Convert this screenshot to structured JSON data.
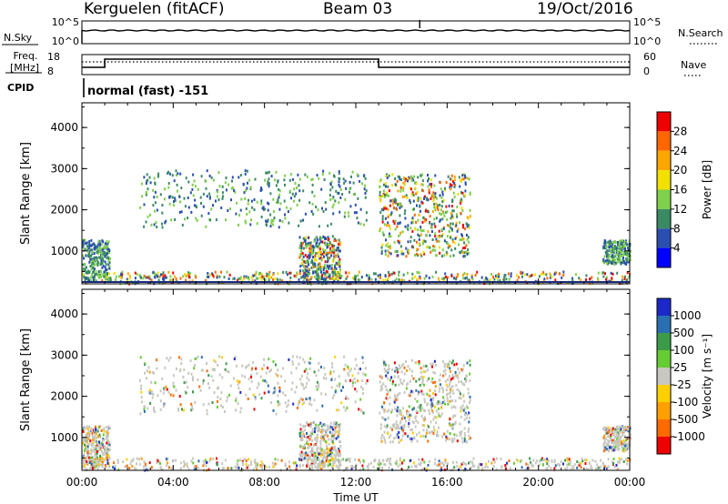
{
  "header": {
    "station": "Kerguelen (fitACF)",
    "beam": "Beam 03",
    "date": "19/Oct/2016"
  },
  "params": {
    "nsky_label": "N.Sky",
    "nsky_ticks": [
      "10^5",
      "10^0"
    ],
    "nsearch_label": "N.Search",
    "nsearch_ticks": [
      "10^5",
      "10^0"
    ],
    "freq_label_top": "Freq.",
    "freq_label_unit": "[MHz]",
    "freq_ticks": [
      "18",
      "8"
    ],
    "nave_label": "Nave",
    "nave_ticks": [
      "60",
      "0"
    ],
    "cpid_label": "CPID",
    "cpid_text": "normal (fast) -151"
  },
  "chart_data": [
    {
      "type": "heatmap",
      "name": "power",
      "ylabel": "Slant Range [km]",
      "yticks": [
        "1000",
        "2000",
        "3000",
        "4000"
      ],
      "ylim": [
        200,
        4600
      ],
      "colorbar": {
        "label": "Power [dB]",
        "ticks": [
          "28",
          "24",
          "20",
          "16",
          "12",
          "8",
          "4"
        ],
        "colors": [
          "#ee0000",
          "#ff6600",
          "#ffa600",
          "#f2e000",
          "#7fd04b",
          "#3a8a63",
          "#2a4fb0",
          "#0000ff"
        ]
      }
    },
    {
      "type": "heatmap",
      "name": "velocity",
      "ylabel": "Slant Range [km]",
      "yticks": [
        "1000",
        "2000",
        "3000",
        "4000"
      ],
      "ylim": [
        200,
        4600
      ],
      "colorbar": {
        "label": "Velocity [m s⁻¹]",
        "ticks": [
          "1000",
          "500",
          "100",
          "25",
          "-25",
          "-100",
          "-500",
          "-1000"
        ],
        "colors": [
          "#1c28c8",
          "#2a6fb2",
          "#3b9b49",
          "#66cc33",
          "#c8c8c0",
          "#ffd000",
          "#ffa000",
          "#ff6a00",
          "#ee0000"
        ]
      }
    }
  ],
  "xaxis": {
    "label": "Time UT",
    "ticks": [
      "00:00",
      "04:00",
      "08:00",
      "12:00",
      "16:00",
      "20:00",
      "00:00"
    ]
  }
}
